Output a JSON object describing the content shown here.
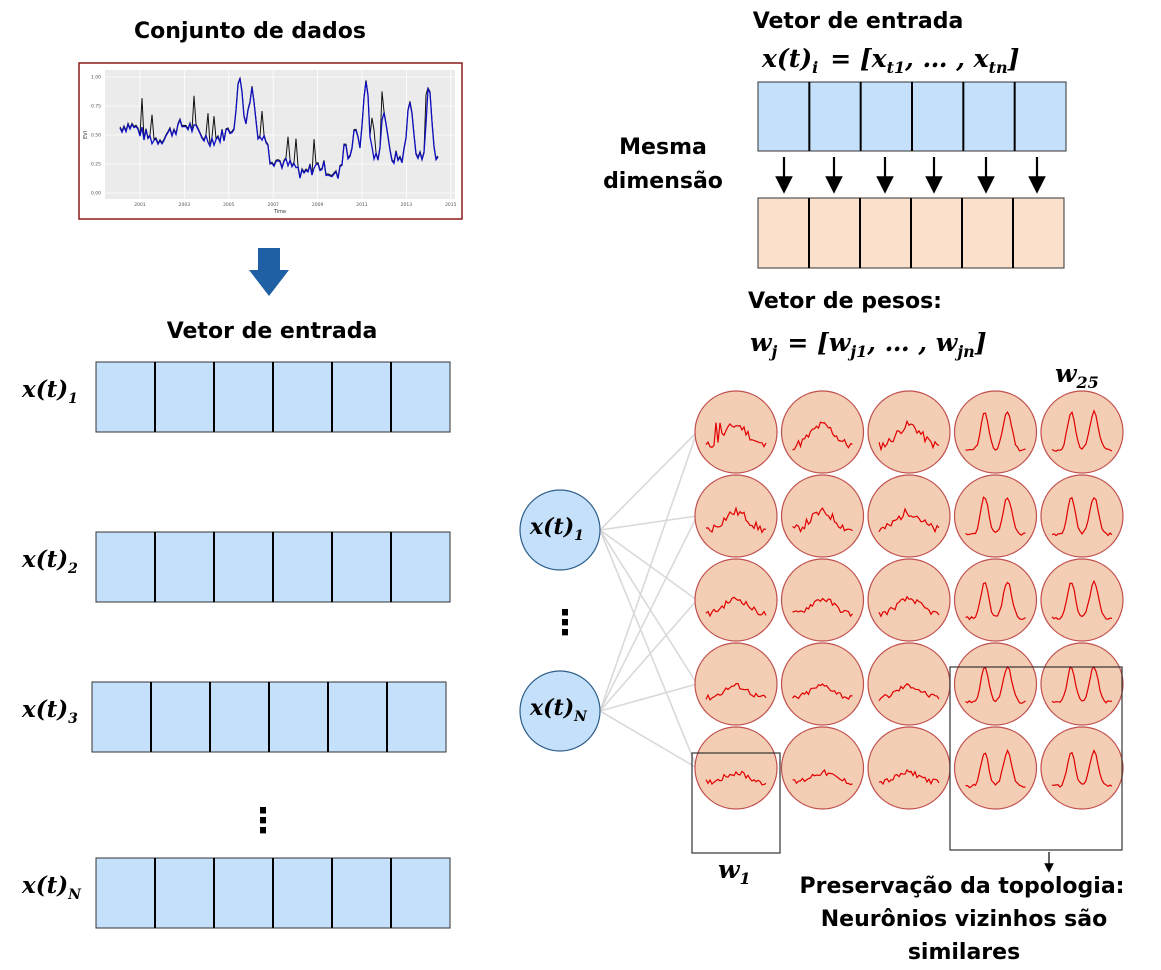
{
  "dataset": {
    "title": "Conjunto de dados",
    "chart": {
      "ylabel": "EVI",
      "xlabel": "Time",
      "yticks": [
        "0.00",
        "0.25",
        "0.50",
        "0.75",
        "1.00"
      ],
      "xticks": [
        "2001",
        "2003",
        "2005",
        "2007",
        "2009",
        "2011",
        "2013",
        "2015"
      ]
    }
  },
  "left": {
    "title": "Vetor de entrada",
    "rows": [
      {
        "base": "x(t)",
        "sub": "1"
      },
      {
        "base": "x(t)",
        "sub": "2"
      },
      {
        "base": "x(t)",
        "sub": "3"
      },
      {
        "base": "x(t)",
        "sub": "N"
      }
    ],
    "ellipsis": "⋮"
  },
  "right_top": {
    "title": "Vetor de entrada",
    "formula": {
      "lhs": "x(t)",
      "lhs_sub": "i",
      "rhs": "= [x",
      "rhs_sub1": "t1",
      "mid": ", … , x",
      "rhs_sub2": "tn",
      "end": "]"
    },
    "same_dim": [
      "Mesma",
      "dimensão"
    ],
    "weights_title": "Vetor de pesos:",
    "weights_formula": {
      "lhs": "w",
      "lhs_sub": "j",
      "rhs": "= [w",
      "rhs_sub1": "j1",
      "mid": ", … , w",
      "rhs_sub2": "jn",
      "end": "]"
    },
    "colors": {
      "input": "#c5e0fb",
      "weight": "#fbe0cc"
    }
  },
  "som": {
    "inputs": [
      {
        "base": "x(t)",
        "sub": "1"
      },
      {
        "base": "x(t)",
        "sub": "N"
      }
    ],
    "ellipsis": "⋮",
    "w_top": {
      "base": "w",
      "sub": "25"
    },
    "w_bottom": {
      "base": "w",
      "sub": "1"
    },
    "caption": [
      "Preservação da topologia:",
      "Neurônios vizinhos são",
      "similares"
    ],
    "neuron_fill": "#f4cdb5",
    "neuron_stroke": "#c0504d",
    "curve_color": "#e00000"
  }
}
